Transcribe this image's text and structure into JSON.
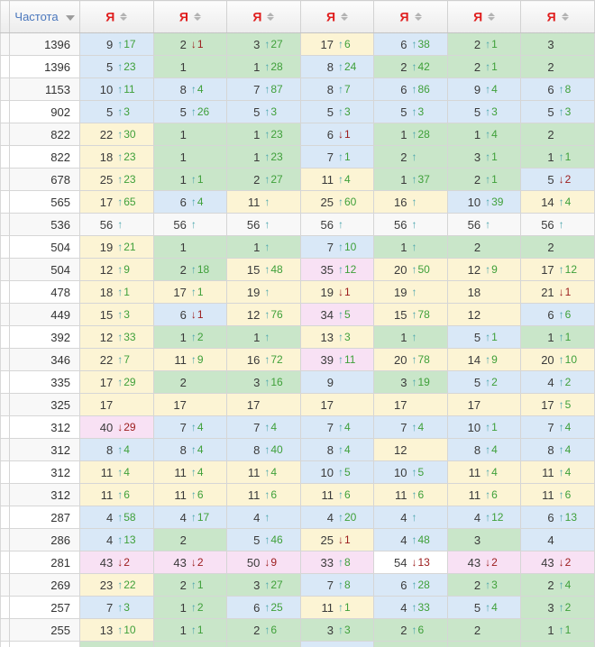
{
  "header": {
    "freq_label": "Частота",
    "freq_sort": "descending",
    "engine_columns": [
      "Я",
      "Я",
      "Я",
      "Я",
      "Я",
      "Я",
      "Я"
    ]
  },
  "theme": {
    "cell_blue": "#d9e8f7",
    "cell_green": "#c9e6c9",
    "cell_yellow": "#fcf4d4",
    "cell_pink": "#f8e1f4",
    "up_change_color": "#3fa03a",
    "up_arrow_color": "#4aa5ad",
    "down_color": "#9b1b1b",
    "engine_red": "#e01e1e",
    "accent_link": "#4a77bd"
  },
  "cell_format": [
    "value",
    "direction: u=up-arrow, d=down-arrow, empty=none",
    "change amount (may be empty with arrow only)",
    "bg: B=blue G=green Y=yellow P=pink W=white"
  ],
  "rows": [
    {
      "f": "1396",
      "cells": [
        [
          "9",
          "u",
          "17",
          "B"
        ],
        [
          "2",
          "d",
          "1",
          "G"
        ],
        [
          "3",
          "u",
          "27",
          "G"
        ],
        [
          "17",
          "u",
          "6",
          "Y"
        ],
        [
          "6",
          "u",
          "38",
          "B"
        ],
        [
          "2",
          "u",
          "1",
          "G"
        ],
        [
          "3",
          "",
          "",
          "G"
        ]
      ]
    },
    {
      "f": "1396",
      "cells": [
        [
          "5",
          "u",
          "23",
          "B"
        ],
        [
          "1",
          "",
          "",
          "G"
        ],
        [
          "1",
          "u",
          "28",
          "G"
        ],
        [
          "8",
          "u",
          "24",
          "B"
        ],
        [
          "2",
          "u",
          "42",
          "G"
        ],
        [
          "2",
          "u",
          "1",
          "G"
        ],
        [
          "2",
          "",
          "",
          "G"
        ]
      ]
    },
    {
      "f": "1153",
      "cells": [
        [
          "10",
          "u",
          "11",
          "B"
        ],
        [
          "8",
          "u",
          "4",
          "B"
        ],
        [
          "7",
          "u",
          "87",
          "B"
        ],
        [
          "8",
          "u",
          "7",
          "B"
        ],
        [
          "6",
          "u",
          "86",
          "B"
        ],
        [
          "9",
          "u",
          "4",
          "B"
        ],
        [
          "6",
          "u",
          "8",
          "B"
        ]
      ]
    },
    {
      "f": "902",
      "cells": [
        [
          "5",
          "u",
          "3",
          "B"
        ],
        [
          "5",
          "u",
          "26",
          "B"
        ],
        [
          "5",
          "u",
          "3",
          "B"
        ],
        [
          "5",
          "u",
          "3",
          "B"
        ],
        [
          "5",
          "u",
          "3",
          "B"
        ],
        [
          "5",
          "u",
          "3",
          "B"
        ],
        [
          "5",
          "u",
          "3",
          "B"
        ]
      ]
    },
    {
      "f": "822",
      "cells": [
        [
          "22",
          "u",
          "30",
          "Y"
        ],
        [
          "1",
          "",
          "",
          "G"
        ],
        [
          "1",
          "u",
          "23",
          "G"
        ],
        [
          "6",
          "d",
          "1",
          "B"
        ],
        [
          "1",
          "u",
          "28",
          "G"
        ],
        [
          "1",
          "u",
          "4",
          "G"
        ],
        [
          "2",
          "",
          "",
          "G"
        ]
      ]
    },
    {
      "f": "822",
      "cells": [
        [
          "18",
          "u",
          "23",
          "Y"
        ],
        [
          "1",
          "",
          "",
          "G"
        ],
        [
          "1",
          "u",
          "23",
          "G"
        ],
        [
          "7",
          "u",
          "1",
          "B"
        ],
        [
          "2",
          "u",
          "",
          "G"
        ],
        [
          "3",
          "u",
          "1",
          "G"
        ],
        [
          "1",
          "u",
          "1",
          "G"
        ]
      ]
    },
    {
      "f": "678",
      "cells": [
        [
          "25",
          "u",
          "23",
          "Y"
        ],
        [
          "1",
          "u",
          "1",
          "G"
        ],
        [
          "2",
          "u",
          "27",
          "G"
        ],
        [
          "11",
          "u",
          "4",
          "Y"
        ],
        [
          "1",
          "u",
          "37",
          "G"
        ],
        [
          "2",
          "u",
          "1",
          "G"
        ],
        [
          "5",
          "d",
          "2",
          "B"
        ]
      ]
    },
    {
      "f": "565",
      "cells": [
        [
          "17",
          "u",
          "65",
          "Y"
        ],
        [
          "6",
          "u",
          "4",
          "B"
        ],
        [
          "11",
          "u",
          "",
          "Y"
        ],
        [
          "25",
          "u",
          "60",
          "Y"
        ],
        [
          "16",
          "u",
          "",
          "Y"
        ],
        [
          "10",
          "u",
          "39",
          "B"
        ],
        [
          "14",
          "u",
          "4",
          "Y"
        ]
      ]
    },
    {
      "f": "536",
      "cells": [
        [
          "56",
          "u",
          "",
          "W"
        ],
        [
          "56",
          "u",
          "",
          "W"
        ],
        [
          "56",
          "u",
          "",
          "W"
        ],
        [
          "56",
          "u",
          "",
          "W"
        ],
        [
          "56",
          "u",
          "",
          "W"
        ],
        [
          "56",
          "u",
          "",
          "W"
        ],
        [
          "56",
          "u",
          "",
          "W"
        ]
      ]
    },
    {
      "f": "504",
      "cells": [
        [
          "19",
          "u",
          "21",
          "Y"
        ],
        [
          "1",
          "",
          "",
          "G"
        ],
        [
          "1",
          "u",
          "",
          "G"
        ],
        [
          "7",
          "u",
          "10",
          "B"
        ],
        [
          "1",
          "u",
          "",
          "G"
        ],
        [
          "2",
          "",
          "",
          "G"
        ],
        [
          "2",
          "",
          "",
          "G"
        ]
      ]
    },
    {
      "f": "504",
      "cells": [
        [
          "12",
          "u",
          "9",
          "Y"
        ],
        [
          "2",
          "u",
          "18",
          "G"
        ],
        [
          "15",
          "u",
          "48",
          "Y"
        ],
        [
          "35",
          "u",
          "12",
          "P"
        ],
        [
          "20",
          "u",
          "50",
          "Y"
        ],
        [
          "12",
          "u",
          "9",
          "Y"
        ],
        [
          "17",
          "u",
          "12",
          "Y"
        ]
      ]
    },
    {
      "f": "478",
      "cells": [
        [
          "18",
          "u",
          "1",
          "Y"
        ],
        [
          "17",
          "u",
          "1",
          "Y"
        ],
        [
          "19",
          "u",
          "",
          "Y"
        ],
        [
          "19",
          "d",
          "1",
          "Y"
        ],
        [
          "19",
          "u",
          "",
          "Y"
        ],
        [
          "18",
          "",
          "",
          "Y"
        ],
        [
          "21",
          "d",
          "1",
          "Y"
        ]
      ]
    },
    {
      "f": "449",
      "cells": [
        [
          "15",
          "u",
          "3",
          "Y"
        ],
        [
          "6",
          "d",
          "1",
          "B"
        ],
        [
          "12",
          "u",
          "76",
          "Y"
        ],
        [
          "34",
          "u",
          "5",
          "P"
        ],
        [
          "15",
          "u",
          "78",
          "Y"
        ],
        [
          "12",
          "",
          "",
          "Y"
        ],
        [
          "6",
          "u",
          "6",
          "B"
        ]
      ]
    },
    {
      "f": "392",
      "cells": [
        [
          "12",
          "u",
          "33",
          "Y"
        ],
        [
          "1",
          "u",
          "2",
          "G"
        ],
        [
          "1",
          "u",
          "",
          "G"
        ],
        [
          "13",
          "u",
          "3",
          "Y"
        ],
        [
          "1",
          "u",
          "",
          "G"
        ],
        [
          "5",
          "u",
          "1",
          "B"
        ],
        [
          "1",
          "u",
          "1",
          "G"
        ]
      ]
    },
    {
      "f": "346",
      "cells": [
        [
          "22",
          "u",
          "7",
          "Y"
        ],
        [
          "11",
          "u",
          "9",
          "Y"
        ],
        [
          "16",
          "u",
          "72",
          "Y"
        ],
        [
          "39",
          "u",
          "11",
          "P"
        ],
        [
          "20",
          "u",
          "78",
          "Y"
        ],
        [
          "14",
          "u",
          "9",
          "Y"
        ],
        [
          "20",
          "u",
          "10",
          "Y"
        ]
      ]
    },
    {
      "f": "335",
      "cells": [
        [
          "17",
          "u",
          "29",
          "Y"
        ],
        [
          "2",
          "",
          "",
          "G"
        ],
        [
          "3",
          "u",
          "16",
          "G"
        ],
        [
          "9",
          "",
          "",
          "B"
        ],
        [
          "3",
          "u",
          "19",
          "G"
        ],
        [
          "5",
          "u",
          "2",
          "B"
        ],
        [
          "4",
          "u",
          "2",
          "B"
        ]
      ]
    },
    {
      "f": "325",
      "cells": [
        [
          "17",
          "",
          "",
          "Y"
        ],
        [
          "17",
          "",
          "",
          "Y"
        ],
        [
          "17",
          "",
          "",
          "Y"
        ],
        [
          "17",
          "",
          "",
          "Y"
        ],
        [
          "17",
          "",
          "",
          "Y"
        ],
        [
          "17",
          "",
          "",
          "Y"
        ],
        [
          "17",
          "u",
          "5",
          "Y"
        ]
      ]
    },
    {
      "f": "312",
      "cells": [
        [
          "40",
          "d",
          "29",
          "P"
        ],
        [
          "7",
          "u",
          "4",
          "B"
        ],
        [
          "7",
          "u",
          "4",
          "B"
        ],
        [
          "7",
          "u",
          "4",
          "B"
        ],
        [
          "7",
          "u",
          "4",
          "B"
        ],
        [
          "10",
          "u",
          "1",
          "B"
        ],
        [
          "7",
          "u",
          "4",
          "B"
        ]
      ]
    },
    {
      "f": "312",
      "cells": [
        [
          "8",
          "u",
          "4",
          "B"
        ],
        [
          "8",
          "u",
          "4",
          "B"
        ],
        [
          "8",
          "u",
          "40",
          "B"
        ],
        [
          "8",
          "u",
          "4",
          "B"
        ],
        [
          "12",
          "",
          "",
          "Y"
        ],
        [
          "8",
          "u",
          "4",
          "B"
        ],
        [
          "8",
          "u",
          "4",
          "B"
        ]
      ]
    },
    {
      "f": "312",
      "cells": [
        [
          "11",
          "u",
          "4",
          "Y"
        ],
        [
          "11",
          "u",
          "4",
          "Y"
        ],
        [
          "11",
          "u",
          "4",
          "Y"
        ],
        [
          "10",
          "u",
          "5",
          "B"
        ],
        [
          "10",
          "u",
          "5",
          "B"
        ],
        [
          "11",
          "u",
          "4",
          "Y"
        ],
        [
          "11",
          "u",
          "4",
          "Y"
        ]
      ]
    },
    {
      "f": "312",
      "cells": [
        [
          "11",
          "u",
          "6",
          "Y"
        ],
        [
          "11",
          "u",
          "6",
          "Y"
        ],
        [
          "11",
          "u",
          "6",
          "Y"
        ],
        [
          "11",
          "u",
          "6",
          "Y"
        ],
        [
          "11",
          "u",
          "6",
          "Y"
        ],
        [
          "11",
          "u",
          "6",
          "Y"
        ],
        [
          "11",
          "u",
          "6",
          "Y"
        ]
      ]
    },
    {
      "f": "287",
      "cells": [
        [
          "4",
          "u",
          "58",
          "B"
        ],
        [
          "4",
          "u",
          "17",
          "B"
        ],
        [
          "4",
          "u",
          "",
          "B"
        ],
        [
          "4",
          "u",
          "20",
          "B"
        ],
        [
          "4",
          "u",
          "",
          "B"
        ],
        [
          "4",
          "u",
          "12",
          "B"
        ],
        [
          "6",
          "u",
          "13",
          "B"
        ]
      ]
    },
    {
      "f": "286",
      "cells": [
        [
          "4",
          "u",
          "13",
          "B"
        ],
        [
          "2",
          "",
          "",
          "G"
        ],
        [
          "5",
          "u",
          "46",
          "B"
        ],
        [
          "25",
          "d",
          "1",
          "Y"
        ],
        [
          "4",
          "u",
          "48",
          "B"
        ],
        [
          "3",
          "",
          "",
          "G"
        ],
        [
          "4",
          "",
          "",
          "B"
        ]
      ]
    },
    {
      "f": "281",
      "cells": [
        [
          "43",
          "d",
          "2",
          "P"
        ],
        [
          "43",
          "d",
          "2",
          "P"
        ],
        [
          "50",
          "d",
          "9",
          "P"
        ],
        [
          "33",
          "u",
          "8",
          "P"
        ],
        [
          "54",
          "d",
          "13",
          "W"
        ],
        [
          "43",
          "d",
          "2",
          "P"
        ],
        [
          "43",
          "d",
          "2",
          "P"
        ]
      ]
    },
    {
      "f": "269",
      "cells": [
        [
          "23",
          "u",
          "22",
          "Y"
        ],
        [
          "2",
          "u",
          "1",
          "G"
        ],
        [
          "3",
          "u",
          "27",
          "G"
        ],
        [
          "7",
          "u",
          "8",
          "B"
        ],
        [
          "6",
          "u",
          "28",
          "B"
        ],
        [
          "2",
          "u",
          "3",
          "G"
        ],
        [
          "2",
          "u",
          "4",
          "G"
        ]
      ]
    },
    {
      "f": "257",
      "cells": [
        [
          "7",
          "u",
          "3",
          "B"
        ],
        [
          "1",
          "u",
          "2",
          "G"
        ],
        [
          "6",
          "u",
          "25",
          "B"
        ],
        [
          "11",
          "u",
          "1",
          "Y"
        ],
        [
          "4",
          "u",
          "33",
          "B"
        ],
        [
          "5",
          "u",
          "4",
          "B"
        ],
        [
          "3",
          "u",
          "2",
          "G"
        ]
      ]
    },
    {
      "f": "255",
      "cells": [
        [
          "13",
          "u",
          "10",
          "Y"
        ],
        [
          "1",
          "u",
          "1",
          "G"
        ],
        [
          "2",
          "u",
          "6",
          "G"
        ],
        [
          "3",
          "u",
          "3",
          "G"
        ],
        [
          "2",
          "u",
          "6",
          "G"
        ],
        [
          "2",
          "",
          "",
          "G"
        ],
        [
          "1",
          "u",
          "1",
          "G"
        ]
      ]
    }
  ],
  "partial_row_bgs": [
    "G",
    "G",
    "G",
    "B",
    "G",
    "G",
    "G"
  ]
}
